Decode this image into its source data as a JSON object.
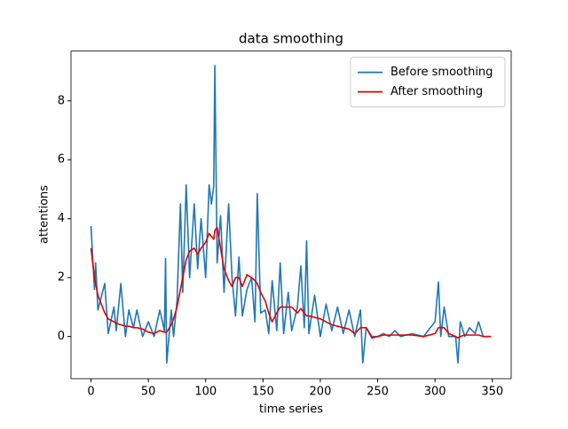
{
  "chart_data": {
    "type": "line",
    "title": "data smoothing",
    "x_label": "time series",
    "y_label": "attentions",
    "x": [
      0,
      3,
      4,
      6,
      12,
      15,
      20,
      22,
      26,
      30,
      33,
      37,
      40,
      45,
      50,
      55,
      60,
      64,
      65,
      66,
      70,
      72,
      75,
      78,
      80,
      83,
      86,
      90,
      93,
      96,
      100,
      103,
      105,
      107,
      108,
      110,
      113,
      116,
      120,
      123,
      126,
      129,
      132,
      136,
      140,
      143,
      145,
      148,
      152,
      155,
      158,
      162,
      165,
      168,
      172,
      175,
      180,
      183,
      186,
      188,
      190,
      195,
      200,
      205,
      210,
      215,
      220,
      225,
      230,
      235,
      237,
      240,
      245,
      250,
      255,
      260,
      265,
      270,
      280,
      290,
      300,
      303,
      305,
      308,
      312,
      318,
      320,
      322,
      326,
      330,
      335,
      338,
      342,
      349
    ],
    "series": [
      {
        "name": "Before smoothing",
        "color": "#1f77b4",
        "values": [
          3.75,
          1.6,
          2.5,
          0.9,
          1.8,
          0.1,
          1.0,
          0.2,
          1.8,
          0,
          0.9,
          0.3,
          0.9,
          0,
          0.5,
          0,
          0.9,
          0.2,
          2.65,
          -0.9,
          0.9,
          0,
          1.2,
          4.5,
          1.5,
          5.15,
          2.0,
          4.5,
          2.3,
          4.0,
          2.0,
          5.15,
          4.5,
          5.1,
          9.2,
          2.5,
          4.1,
          1.5,
          4.5,
          2.0,
          0.7,
          2.7,
          0.7,
          1.6,
          2.0,
          0.5,
          4.85,
          0.8,
          0.9,
          0.1,
          1.9,
          0.2,
          2.5,
          0.1,
          1.5,
          0.2,
          1.0,
          2.4,
          0.3,
          3.25,
          0.1,
          1.4,
          0,
          1.1,
          0.2,
          1.0,
          0.1,
          0.9,
          0,
          0.9,
          -0.9,
          0.3,
          0,
          0,
          0.1,
          0,
          0.2,
          0,
          0.1,
          0,
          0.5,
          1.85,
          0,
          1.0,
          0,
          0,
          -0.9,
          0.5,
          0,
          0.3,
          0.1,
          0.5,
          0,
          0
        ]
      },
      {
        "name": "After smoothing",
        "color": "#e00000",
        "values": [
          3.0,
          2.0,
          1.8,
          1.4,
          0.8,
          0.6,
          0.5,
          0.45,
          0.4,
          0.35,
          0.35,
          0.3,
          0.3,
          0.25,
          0.15,
          0.1,
          0.2,
          0.15,
          0.15,
          0.15,
          0.4,
          0.6,
          1.0,
          1.6,
          2.0,
          2.6,
          2.9,
          3.0,
          2.8,
          3.0,
          3.2,
          3.5,
          3.4,
          3.3,
          3.6,
          3.7,
          3.0,
          2.3,
          1.9,
          1.7,
          2.0,
          2.0,
          1.7,
          2.1,
          2.0,
          1.9,
          1.8,
          1.5,
          1.2,
          0.8,
          0.5,
          0.8,
          1.0,
          1.0,
          1.0,
          1.0,
          0.8,
          0.95,
          0.8,
          0.7,
          0.7,
          0.65,
          0.6,
          0.5,
          0.4,
          0.35,
          0.3,
          0.25,
          0.1,
          0.3,
          0.3,
          0.3,
          -0.05,
          0,
          0.05,
          0.05,
          0.05,
          0.05,
          0.05,
          0,
          0.1,
          0.3,
          0.3,
          0.3,
          0.1,
          0,
          -0.05,
          0,
          0.05,
          0.05,
          0.05,
          0.05,
          0,
          0
        ]
      }
    ],
    "xlim": [
      -17.45,
      366.45
    ],
    "ylim": [
      -1.43,
      9.69
    ],
    "xticks": [
      0,
      50,
      100,
      150,
      200,
      250,
      300,
      350
    ],
    "yticks": [
      0,
      2,
      4,
      6,
      8
    ],
    "legend": "upper right",
    "grid": false
  }
}
